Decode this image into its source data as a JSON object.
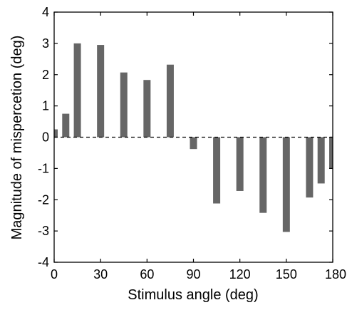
{
  "chart_data": {
    "type": "bar",
    "xlabel": "Stimulus angle (deg)",
    "ylabel": "Magnitude of mispercetion (deg)",
    "xlim": [
      0,
      180
    ],
    "ylim": [
      -4,
      4
    ],
    "xticks": [
      0,
      30,
      60,
      90,
      120,
      150,
      180
    ],
    "yticks": [
      4,
      3,
      2,
      1,
      0,
      -1,
      -2,
      -3,
      -4
    ],
    "grid": false,
    "zero_line": "dashed",
    "bar_color": "#666666",
    "x": [
      0,
      7.5,
      15,
      30,
      45,
      60,
      75,
      90,
      105,
      120,
      135,
      150,
      165,
      172.5,
      180
    ],
    "values": [
      0.25,
      0.75,
      3.0,
      2.95,
      2.07,
      1.83,
      2.32,
      -0.38,
      -2.12,
      -1.72,
      -2.42,
      -3.03,
      -1.93,
      -1.48,
      -1.0
    ]
  }
}
